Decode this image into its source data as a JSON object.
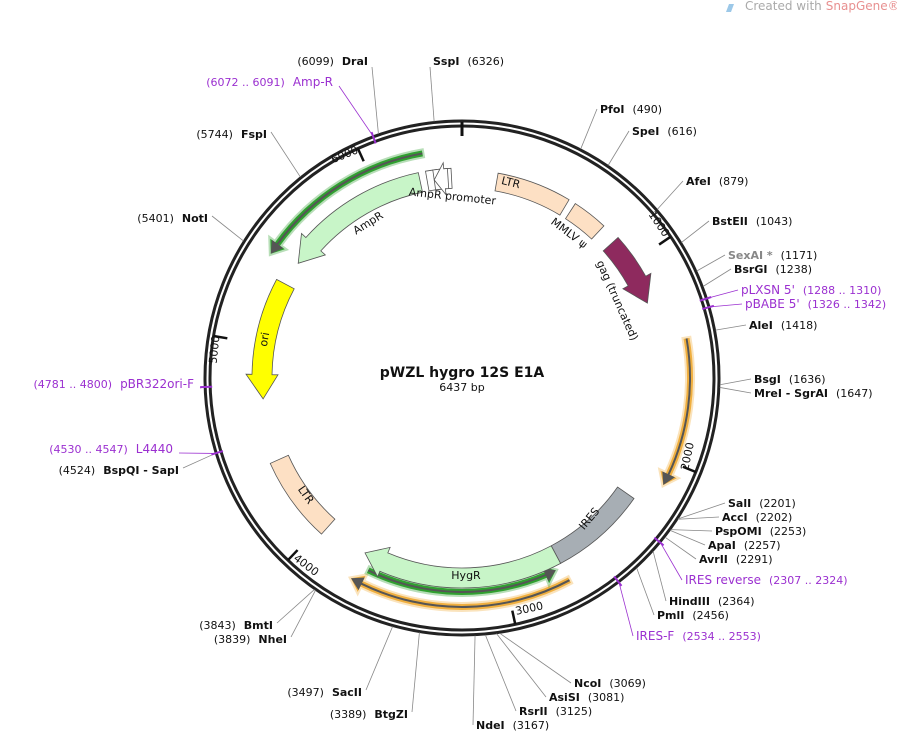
{
  "watermark": {
    "prefix": "Created with",
    "brand": "SnapGene®"
  },
  "map": {
    "title": "pWZL hygro 12S E1A",
    "length": "6437 bp",
    "scale_labels": [
      "1000",
      "2000",
      "3000",
      "4000",
      "5000",
      "6000"
    ],
    "features": [
      {
        "label": "LTR"
      },
      {
        "label": "MMLV ψ"
      },
      {
        "label": "gag (truncated)"
      },
      {
        "label": "IRES"
      },
      {
        "label": "HygR"
      },
      {
        "label": "LTR"
      },
      {
        "label": "ori"
      },
      {
        "label": "AmpR"
      },
      {
        "label": "AmpR promoter"
      }
    ],
    "sites_right": [
      {
        "name": "SspI",
        "position": "(6326)"
      },
      {
        "name": "PfoI",
        "position": "(490)"
      },
      {
        "name": "SpeI",
        "position": "(616)"
      },
      {
        "name": "AfeI",
        "position": "(879)"
      },
      {
        "name": "BstEII",
        "position": "(1043)"
      },
      {
        "name": "SexAI *",
        "position": "(1171)"
      },
      {
        "name": "BsrGI",
        "position": "(1238)"
      },
      {
        "name": "AleI",
        "position": "(1418)"
      },
      {
        "name": "BsgI",
        "position": "(1636)"
      },
      {
        "name": "MreI - SgrAI",
        "position": "(1647)"
      },
      {
        "name": "SalI",
        "position": "(2201)"
      },
      {
        "name": "AccI",
        "position": "(2202)"
      },
      {
        "name": "PspOMI",
        "position": "(2253)"
      },
      {
        "name": "ApaI",
        "position": "(2257)"
      },
      {
        "name": "AvrII",
        "position": "(2291)"
      },
      {
        "name": "HindIII",
        "position": "(2364)"
      },
      {
        "name": "PmlI",
        "position": "(2456)"
      },
      {
        "name": "NcoI",
        "position": "(3069)"
      },
      {
        "name": "AsiSI",
        "position": "(3081)"
      },
      {
        "name": "RsrII",
        "position": "(3125)"
      },
      {
        "name": "NdeI",
        "position": "(3167)"
      }
    ],
    "sites_left": [
      {
        "name": "DraI",
        "position": "(6099)"
      },
      {
        "name": "FspI",
        "position": "(5744)"
      },
      {
        "name": "NotI",
        "position": "(5401)"
      },
      {
        "name": "BspQI - SapI",
        "position": "(4524)"
      },
      {
        "name": "BmtI",
        "position": "(3843)"
      },
      {
        "name": "NheI",
        "position": "(3839)"
      },
      {
        "name": "SacII",
        "position": "(3497)"
      },
      {
        "name": "BtgZI",
        "position": "(3389)"
      }
    ],
    "primers_right": [
      {
        "name": "pLXSN 5'",
        "range": "(1288 .. 1310)"
      },
      {
        "name": "pBABE 5'",
        "range": "(1326 .. 1342)"
      },
      {
        "name": "IRES reverse",
        "range": "(2307 .. 2324)"
      },
      {
        "name": "IRES-F",
        "range": "(2534 .. 2553)"
      }
    ],
    "primers_left": [
      {
        "name": "Amp-R",
        "range": "(6072 .. 6091)"
      },
      {
        "name": "pBR322ori-F",
        "range": "(4781 .. 4800)"
      },
      {
        "name": "L4440",
        "range": "(4530 .. 4547)"
      }
    ]
  }
}
